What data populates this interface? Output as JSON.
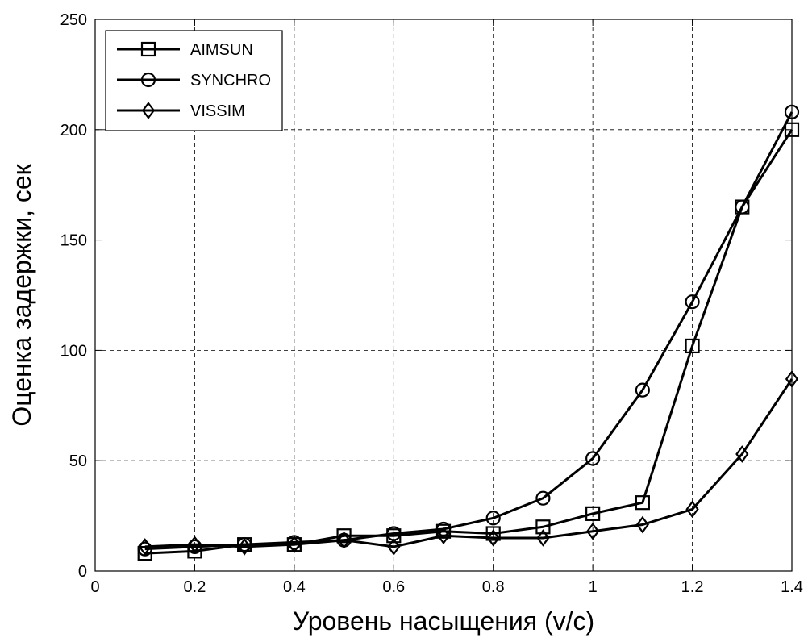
{
  "chart_data": {
    "type": "line",
    "xlabel": "Уровень насыщения (v/c)",
    "ylabel": "Оценка задержки, сек",
    "xlim": [
      0,
      1.4
    ],
    "ylim": [
      0,
      250
    ],
    "x_ticks": [
      0,
      0.2,
      0.4,
      0.6,
      0.8,
      1,
      1.2,
      1.4
    ],
    "x_tick_labels": [
      "0",
      "0.2",
      "0.4",
      "0.6",
      "0.8",
      "1",
      "1.2",
      "1.4"
    ],
    "y_ticks": [
      0,
      50,
      100,
      150,
      200,
      250
    ],
    "y_tick_labels": [
      "0",
      "50",
      "100",
      "150",
      "200",
      "250"
    ],
    "grid": true,
    "legend_position": "top-left",
    "x": [
      0.1,
      0.2,
      0.3,
      0.4,
      0.5,
      0.6,
      0.7,
      0.8,
      0.9,
      1.0,
      1.1,
      1.2,
      1.3,
      1.4
    ],
    "series": [
      {
        "name": "AIMSUN",
        "marker": "square",
        "values": [
          8,
          9,
          12,
          12,
          16,
          16,
          18,
          17,
          20,
          26,
          31,
          102,
          165,
          200
        ]
      },
      {
        "name": "SYNCHRO",
        "marker": "circle",
        "values": [
          10,
          11,
          12,
          13,
          14,
          17,
          19,
          24,
          33,
          51,
          82,
          122,
          165,
          208
        ]
      },
      {
        "name": "VISSIM",
        "marker": "diamond",
        "values": [
          11,
          12,
          11,
          12,
          14,
          11,
          16,
          15,
          15,
          18,
          21,
          28,
          53,
          87
        ]
      }
    ]
  }
}
